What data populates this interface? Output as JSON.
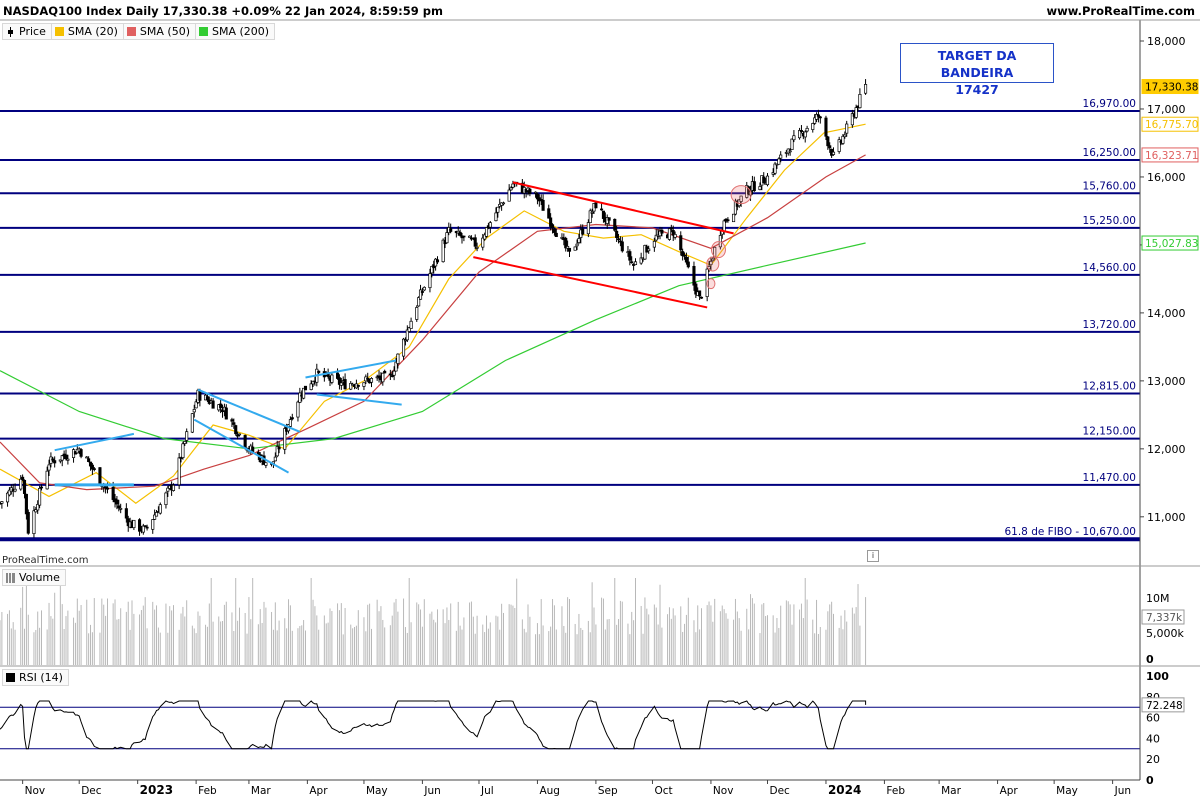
{
  "header": {
    "title": "NASDAQ100 Index Daily 17,330.38 +0.09% 22 Jan 2024, 8:59:59 pm",
    "site": "www.ProRealTime.com"
  },
  "legend": [
    {
      "label": "Price",
      "color": "#000000",
      "kind": "price-icon"
    },
    {
      "label": "SMA (20)",
      "color": "#f5c000",
      "kind": "swatch"
    },
    {
      "label": "SMA (50)",
      "color": "#e06060",
      "kind": "swatch"
    },
    {
      "label": "SMA (200)",
      "color": "#33cc33",
      "kind": "swatch"
    }
  ],
  "target_box": {
    "line1": "TARGET DA BANDEIRA",
    "line2": "17427"
  },
  "watermark": "ProRealTime.com",
  "info_icon": "i",
  "volume_panel": {
    "label": "Volume",
    "ticks": [
      "10M",
      "5,000k",
      "0"
    ],
    "last_value": "7,337k"
  },
  "rsi_panel": {
    "label": "RSI (14)",
    "ticks": [
      "100",
      "80",
      "60",
      "40",
      "20",
      "0"
    ],
    "last_value": "72.248",
    "overbought": 70,
    "oversold": 30
  },
  "colors": {
    "level_line": "#00007f",
    "channel": "#ff0000",
    "pattern": "#33aaee",
    "sma20": "#f5c000",
    "sma50": "#c84040",
    "sma200": "#33cc33",
    "price_badge": "#ffcc00"
  },
  "chart_data": {
    "type": "line",
    "title": "NASDAQ100 Index Daily 17,330.38 +0.09% 22 Jan 2024, 8:59:59 pm",
    "x_ticks": [
      "Nov",
      "Dec",
      "2023",
      "Feb",
      "Mar",
      "Apr",
      "May",
      "Jun",
      "Jul",
      "Aug",
      "Sep",
      "Oct",
      "Nov",
      "Dec",
      "2024",
      "Feb",
      "Mar",
      "Apr",
      "May",
      "Jun"
    ],
    "x_range": [
      "2022-10-20",
      "2024-06-15"
    ],
    "y_ticks": [
      "18,000",
      "17,000",
      "16,000",
      "15,000",
      "14,000",
      "13,000",
      "12,000",
      "11,000"
    ],
    "ylim": [
      10600,
      18200
    ],
    "grid": false,
    "levels": [
      {
        "label": "16,970.00",
        "value": 16970
      },
      {
        "label": "16,250.00",
        "value": 16250
      },
      {
        "label": "15,760.00",
        "value": 15760
      },
      {
        "label": "15,250.00",
        "value": 15250
      },
      {
        "label": "14,560.00",
        "value": 14560
      },
      {
        "label": "13,720.00",
        "value": 13720
      },
      {
        "label": "12,815.00",
        "value": 12815
      },
      {
        "label": "12,150.00",
        "value": 12150
      },
      {
        "label": "11,470.00",
        "value": 11470
      },
      {
        "label": "61.8 de FIBO -  10,670.00",
        "value": 10670
      }
    ],
    "price_badges": [
      {
        "label": "17,330.38",
        "value": 17330.38,
        "color": "#ffcc00"
      },
      {
        "label": "16,775.70",
        "value": 16775.7,
        "color": "#f5c000"
      },
      {
        "label": "16,323.71",
        "value": 16323.71,
        "color": "#e06060"
      },
      {
        "label": "15,027.83",
        "value": 15027.83,
        "color": "#33cc33"
      }
    ],
    "series": [
      {
        "name": "Price",
        "x": [
          "2022-10-20",
          "2022-11-01",
          "2022-11-04",
          "2022-11-15",
          "2022-12-01",
          "2022-12-13",
          "2022-12-28",
          "2023-01-05",
          "2023-01-20",
          "2023-02-02",
          "2023-02-15",
          "2023-03-01",
          "2023-03-13",
          "2023-03-28",
          "2023-04-06",
          "2023-04-20",
          "2023-05-01",
          "2023-05-15",
          "2023-05-30",
          "2023-06-15",
          "2023-06-30",
          "2023-07-19",
          "2023-08-01",
          "2023-08-18",
          "2023-09-01",
          "2023-09-21",
          "2023-10-02",
          "2023-10-12",
          "2023-10-26",
          "2023-11-07",
          "2023-11-20",
          "2023-12-01",
          "2023-12-14",
          "2023-12-28",
          "2024-01-05",
          "2024-01-12",
          "2024-01-22"
        ],
        "values": [
          11200,
          11600,
          10800,
          11800,
          12000,
          11500,
          10900,
          10800,
          11500,
          12800,
          12600,
          12000,
          11750,
          12800,
          13100,
          12950,
          13000,
          13050,
          14200,
          15200,
          15000,
          15900,
          15700,
          14850,
          15600,
          14700,
          15100,
          15200,
          14200,
          15300,
          15800,
          16000,
          16500,
          16900,
          16300,
          16700,
          17330
        ]
      },
      {
        "name": "SMA (20)",
        "x": [
          "2022-10-20",
          "2022-11-15",
          "2022-12-10",
          "2022-12-31",
          "2023-01-20",
          "2023-02-10",
          "2023-03-01",
          "2023-03-20",
          "2023-04-10",
          "2023-05-01",
          "2023-05-25",
          "2023-06-15",
          "2023-07-05",
          "2023-07-25",
          "2023-08-15",
          "2023-09-05",
          "2023-09-25",
          "2023-10-15",
          "2023-11-01",
          "2023-11-20",
          "2023-12-10",
          "2023-12-31",
          "2024-01-22"
        ],
        "values": [
          11700,
          11300,
          11650,
          11200,
          11600,
          12350,
          12200,
          12000,
          12700,
          13000,
          13500,
          14500,
          15100,
          15500,
          15200,
          15100,
          15150,
          14900,
          14700,
          15400,
          16100,
          16650,
          16775.7
        ]
      },
      {
        "name": "SMA (50)",
        "x": [
          "2022-10-20",
          "2022-11-10",
          "2022-12-05",
          "2023-01-10",
          "2023-02-05",
          "2023-03-01",
          "2023-04-01",
          "2023-05-01",
          "2023-06-01",
          "2023-07-01",
          "2023-08-01",
          "2023-09-01",
          "2023-10-01",
          "2023-11-01",
          "2023-12-01",
          "2024-01-01",
          "2024-01-22"
        ],
        "values": [
          12100,
          11500,
          11400,
          11450,
          11700,
          11900,
          12300,
          12700,
          13600,
          14600,
          15200,
          15300,
          15250,
          14950,
          15400,
          16000,
          16323.71
        ]
      },
      {
        "name": "SMA (200)",
        "x": [
          "2022-10-20",
          "2022-12-01",
          "2023-01-15",
          "2023-03-01",
          "2023-04-15",
          "2023-06-01",
          "2023-07-15",
          "2023-09-01",
          "2023-10-15",
          "2023-12-01",
          "2024-01-22"
        ],
        "values": [
          13150,
          12550,
          12150,
          12000,
          12150,
          12550,
          13300,
          13900,
          14400,
          14700,
          15027.83
        ]
      }
    ]
  }
}
